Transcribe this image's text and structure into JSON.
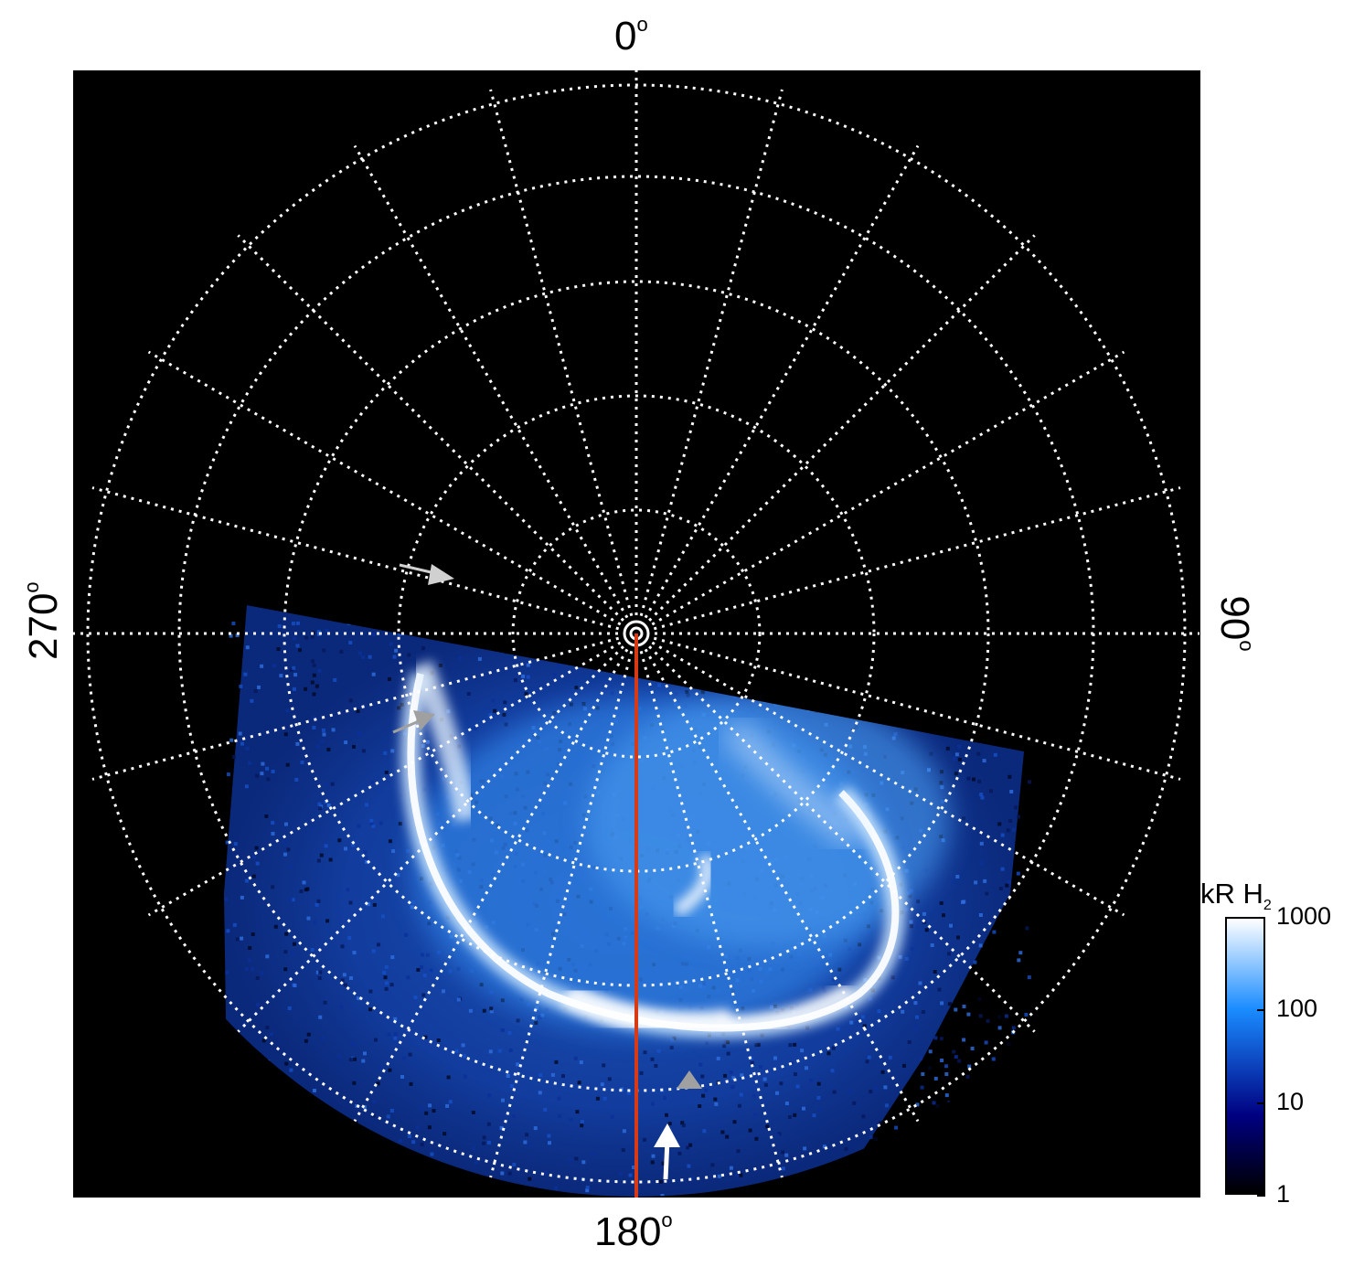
{
  "labels": {
    "top": "0",
    "bottom": "180",
    "left": "270",
    "right": "90",
    "degree_symbol": "o"
  },
  "colorbar": {
    "title": "kR H",
    "title_subscript": "2",
    "scale": "log",
    "ticks": [
      "1000",
      "100",
      "10",
      "1"
    ],
    "tick_values": [
      1000,
      100,
      10,
      1
    ],
    "colors": [
      "#ffffff",
      "#1a8cff",
      "#000080",
      "#000000"
    ]
  },
  "colors": {
    "background": "#000000",
    "grid": "#ffffff",
    "meridian_line": "#d83a16",
    "arrow_white": "#ffffff",
    "arrow_grey": "#a0a0a0",
    "aurora_bright": "#ffffff",
    "aurora_mid": "#3aa0ff",
    "aurora_dark": "#0a2a8a"
  }
}
